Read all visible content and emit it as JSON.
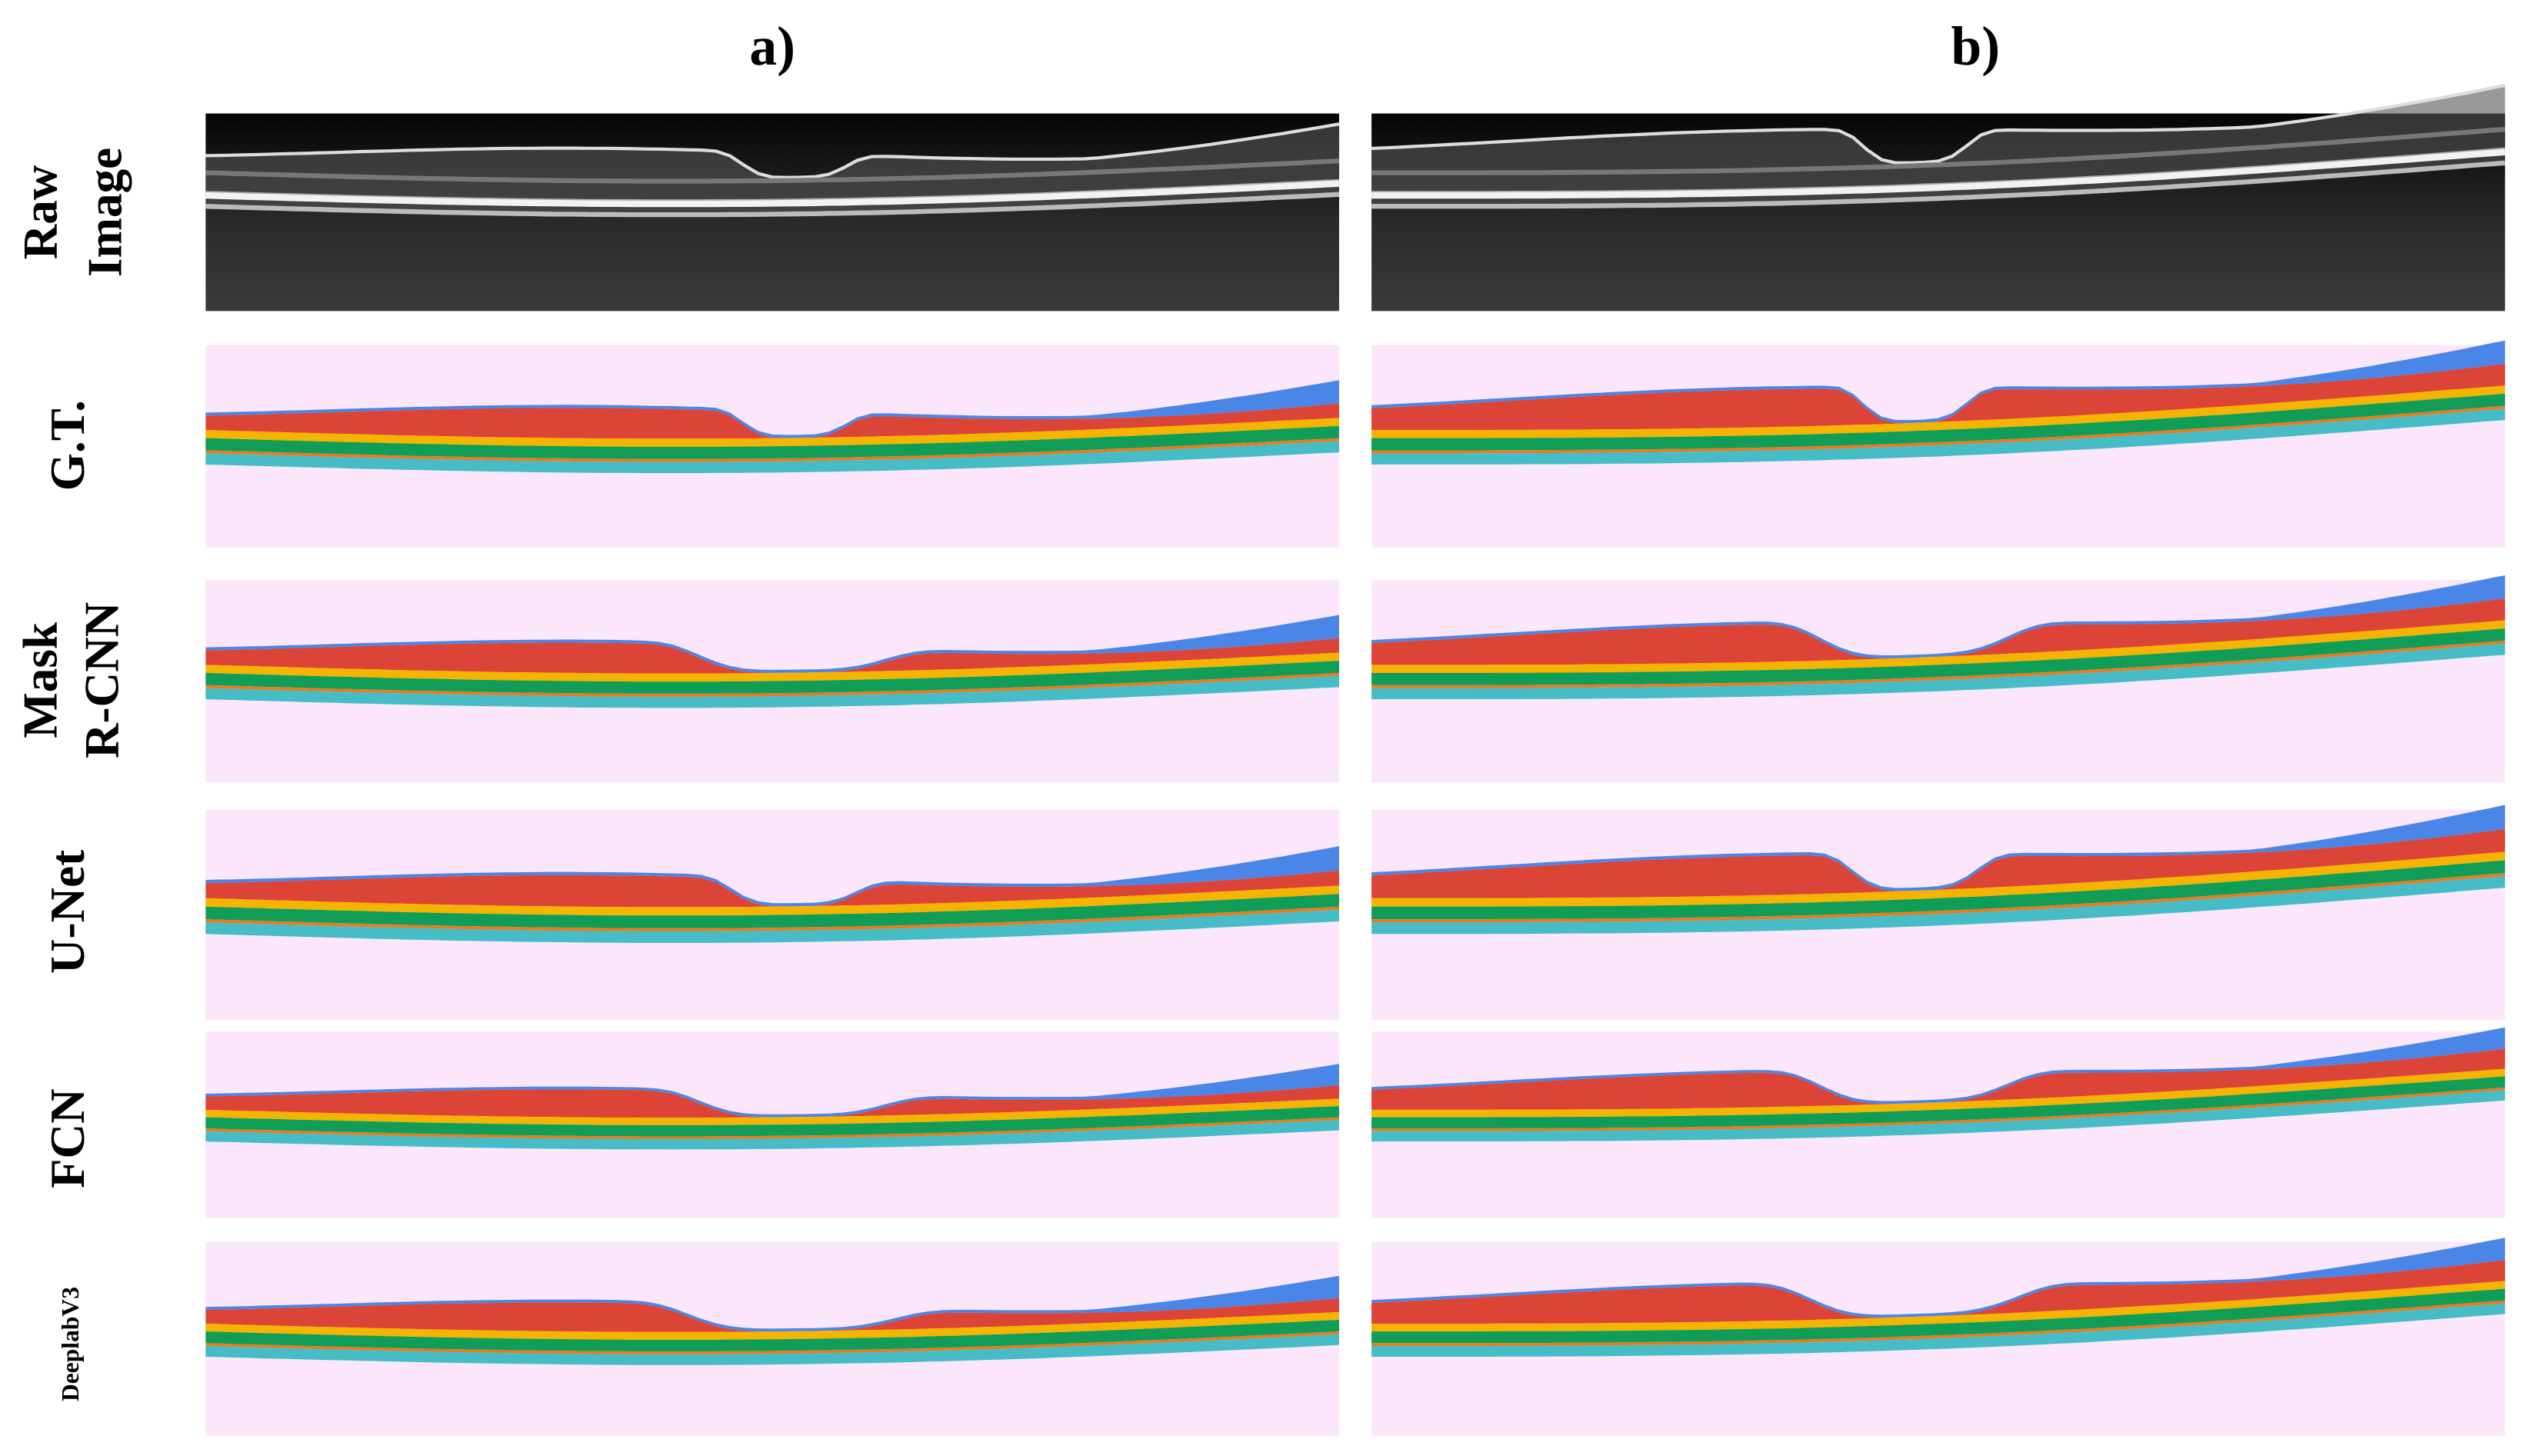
{
  "columns": [
    "a)",
    "b)"
  ],
  "rows": [
    [
      "Raw",
      "Image"
    ],
    [
      "G.T."
    ],
    [
      "Mask",
      "R-CNN"
    ],
    [
      "U-Net"
    ],
    [
      "FCN"
    ],
    [
      "DeeplabV3"
    ]
  ]
}
